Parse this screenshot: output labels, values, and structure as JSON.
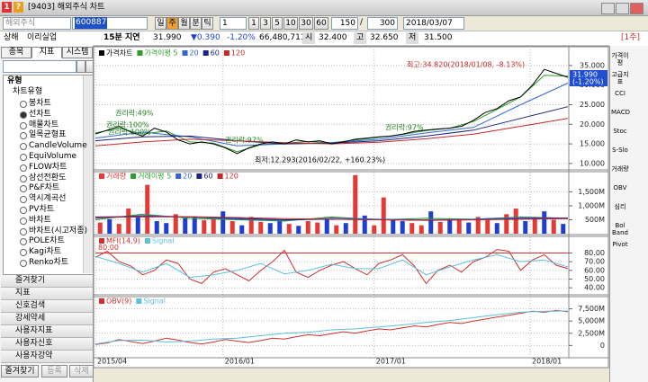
{
  "window": {
    "title": "[9403] 해외주식 차트",
    "icons": [
      "1",
      "?"
    ]
  },
  "toolbar": {
    "market": "해외주식",
    "code": "600887",
    "periods": [
      "일",
      "주",
      "월",
      "분",
      "틱"
    ],
    "interval": "1",
    "minutes": [
      "1",
      "3",
      "5",
      "10",
      "30",
      "60"
    ],
    "count": "150",
    "separator": "/",
    "total": "300",
    "date": "2018/03/07"
  },
  "quote": {
    "exchange": "상해",
    "name": "이리실업",
    "delay": "15분 지연",
    "price": "31.990",
    "change": "▼0.390",
    "rate": "-1.20%",
    "volume": "66,480,711",
    "open_label": "시",
    "open": "32.400",
    "high_label": "고",
    "high": "32.650",
    "low_label": "저",
    "low": "31.500",
    "unit": "[1주]"
  },
  "sidebar": {
    "tabs": [
      "종목",
      "지표",
      "시스템"
    ],
    "tree_root": "유형",
    "group": "차트유형",
    "items": [
      "봉차트",
      "선차트",
      "매물차트",
      "일목균형표",
      "CandleVolume",
      "EquiVolume",
      "FLOW차트",
      "삼선전환도",
      "P&F차트",
      "역시계곡선",
      "PV차트",
      "바차트",
      "바차트(시고저종)",
      "POLE차트",
      "Kagi차트",
      "Renko차트"
    ],
    "selected": 1,
    "sections": [
      "즐겨찾기",
      "지표",
      "신호검색",
      "강세약세",
      "사용자지표",
      "사용자신호",
      "사용자강약"
    ],
    "buttons": [
      "즐겨찾기",
      "등록",
      "삭제"
    ]
  },
  "x_axis": {
    "xlim": [
      0,
      100
    ],
    "xticks": [
      {
        "value": 0,
        "label": "2015/04"
      },
      {
        "value": 27,
        "label": "2016/01"
      },
      {
        "value": 59,
        "label": "2017/01"
      },
      {
        "value": 92,
        "label": "2018/01"
      }
    ]
  },
  "chart_data": [
    {
      "type": "line",
      "title": "가격차트",
      "ylim": [
        8.6,
        39.1
      ],
      "yticks": [
        {
          "value": 35,
          "label": "35.000"
        },
        {
          "value": 30,
          "label": "30.000"
        },
        {
          "value": 25,
          "label": "25.000"
        },
        {
          "value": 20,
          "label": "20.000"
        },
        {
          "value": 15,
          "label": "15.000"
        },
        {
          "value": 10,
          "label": "10.000"
        }
      ],
      "last": {
        "value": 31.99,
        "label": "31.990",
        "change": "(-1.20%)"
      },
      "annotations": [
        "최고:34.820(2018/01/08, -8.13%)",
        "최저:12.293(2016/02/22, +160.23%)",
        "권리락:49%",
        "권리락:100%",
        "권리락:100%",
        "권리락:97%",
        "권리락:97%"
      ],
      "series": [
        {
          "name": "가격이평 5",
          "color": "#2a9d2a",
          "x": [
            0,
            5,
            10,
            15,
            20,
            25,
            30,
            35,
            40,
            45,
            50,
            55,
            60,
            65,
            70,
            75,
            80,
            85,
            90,
            95,
            100
          ],
          "values": [
            17.8,
            19,
            17.5,
            18.3,
            15.5,
            15.2,
            13,
            14.8,
            15.2,
            15.6,
            15.3,
            16,
            16.7,
            17.4,
            18.4,
            19,
            20.7,
            23.8,
            27,
            32.5,
            32.3
          ]
        },
        {
          "name": "20",
          "color": "#3366cc",
          "x": [
            0,
            10,
            20,
            30,
            40,
            50,
            60,
            70,
            80,
            90,
            100
          ],
          "values": [
            16.5,
            18,
            16.8,
            14.5,
            15,
            15.3,
            16.2,
            17.8,
            19.2,
            25,
            30.5
          ]
        },
        {
          "name": "60",
          "color": "#1a237e",
          "x": [
            0,
            10,
            20,
            30,
            40,
            50,
            60,
            70,
            80,
            90,
            100
          ],
          "values": [
            15.8,
            16.8,
            17,
            15.8,
            15,
            15.2,
            15.8,
            17,
            18.5,
            21.5,
            24.5
          ]
        },
        {
          "name": "120",
          "color": "#c62828",
          "x": [
            0,
            10,
            20,
            30,
            40,
            50,
            60,
            70,
            80,
            90,
            100
          ],
          "values": [
            14.5,
            15.5,
            16.2,
            15.8,
            15.3,
            15,
            15.4,
            16.3,
            17.5,
            19.5,
            21.5
          ]
        },
        {
          "name": "가격차트",
          "color": "#000000",
          "x": [
            0,
            2.5,
            5,
            7.5,
            10,
            12.5,
            15,
            17.5,
            20,
            22.5,
            25,
            27.5,
            30,
            32.5,
            35,
            37.5,
            40,
            42.5,
            45,
            47.5,
            50,
            52.5,
            55,
            57.5,
            60,
            62.5,
            65,
            67.5,
            70,
            72.5,
            75,
            77.5,
            80,
            82.5,
            85,
            87.5,
            90,
            92.5,
            95,
            97.5,
            100
          ],
          "values": [
            17.5,
            18.5,
            19.5,
            18,
            17,
            19,
            18,
            16,
            15,
            15.5,
            15,
            14,
            12.5,
            14,
            15,
            15.5,
            15,
            16,
            15.5,
            15.8,
            15,
            15.5,
            16.2,
            16.5,
            16.8,
            17,
            17.5,
            18.2,
            18.5,
            18.8,
            19,
            19.5,
            21,
            23,
            24,
            26,
            27,
            30,
            34,
            33,
            32
          ]
        }
      ]
    },
    {
      "type": "bar",
      "ylim": [
        0,
        2190
      ],
      "yticks": [
        {
          "value": 1500,
          "label": "1,500M"
        },
        {
          "value": 1000,
          "label": "1,000M"
        },
        {
          "value": 500,
          "label": "500M"
        }
      ],
      "series": [
        {
          "name": "거래량",
          "type": "bar",
          "color": "#e53935",
          "x": [
            1,
            3,
            5,
            7,
            9,
            11,
            13,
            15,
            17,
            19,
            21,
            23,
            25,
            27,
            29,
            31,
            33,
            35,
            37,
            39,
            41,
            43,
            45,
            47,
            49,
            51,
            53,
            55,
            57,
            59,
            61,
            63,
            65,
            67,
            69,
            71,
            73,
            75,
            77,
            79,
            81,
            83,
            85,
            87,
            89,
            91,
            93,
            95,
            97,
            99
          ],
          "values": [
            400,
            520,
            350,
            900,
            600,
            1750,
            450,
            380,
            700,
            550,
            620,
            480,
            520,
            800,
            450,
            300,
            600,
            420,
            380,
            500,
            350,
            280,
            450,
            400,
            520,
            300,
            380,
            2100,
            650,
            300,
            1300,
            500,
            450,
            380,
            300,
            800,
            420,
            550,
            480,
            400,
            600,
            520,
            380,
            700,
            900,
            450,
            600,
            800,
            500,
            350
          ],
          "colors": [
            "#e53935",
            "#1e3fd0",
            "#e53935",
            "#e53935",
            "#1e3fd0",
            "#e53935",
            "#1e3fd0",
            "#1e3fd0",
            "#e53935",
            "#1e3fd0",
            "#1e3fd0",
            "#e53935",
            "#e53935",
            "#1e3fd0",
            "#e53935",
            "#1e3fd0",
            "#e53935",
            "#e53935",
            "#1e3fd0",
            "#1e3fd0",
            "#e53935",
            "#1e3fd0",
            "#e53935",
            "#e53935",
            "#1e3fd0",
            "#e53935",
            "#1e3fd0",
            "#e53935",
            "#1e3fd0",
            "#e53935",
            "#e53935",
            "#1e3fd0",
            "#1e3fd0",
            "#e53935",
            "#e53935",
            "#1e3fd0",
            "#e53935",
            "#1e3fd0",
            "#e53935",
            "#1e3fd0",
            "#e53935",
            "#e53935",
            "#1e3fd0",
            "#e53935",
            "#e53935",
            "#1e3fd0",
            "#e53935",
            "#1e3fd0",
            "#e53935",
            "#1e3fd0"
          ]
        },
        {
          "name": "거래이평 5",
          "color": "#2a9d2a",
          "x": [
            0,
            10,
            20,
            30,
            40,
            50,
            60,
            70,
            80,
            90,
            100
          ],
          "values": [
            500,
            700,
            550,
            500,
            450,
            600,
            500,
            550,
            520,
            600,
            550
          ]
        },
        {
          "name": "20",
          "color": "#3366cc",
          "x": [
            0,
            10,
            20,
            30,
            40,
            50,
            60,
            70,
            80,
            90,
            100
          ],
          "values": [
            550,
            650,
            600,
            520,
            480,
            560,
            520,
            500,
            520,
            580,
            560
          ]
        },
        {
          "name": "60",
          "color": "#1a237e",
          "x": [
            0,
            10,
            20,
            30,
            40,
            50,
            60,
            70,
            80,
            90,
            100
          ],
          "values": [
            600,
            620,
            600,
            550,
            500,
            520,
            500,
            480,
            500,
            540,
            560
          ]
        },
        {
          "name": "120",
          "color": "#c62828",
          "x": [
            0,
            10,
            20,
            30,
            40,
            50,
            60,
            70,
            80,
            90,
            100
          ],
          "values": [
            580,
            600,
            610,
            580,
            540,
            520,
            500,
            490,
            495,
            520,
            540
          ]
        }
      ]
    },
    {
      "type": "line",
      "ylim": [
        33,
        98
      ],
      "yticks": [
        {
          "value": 80,
          "label": "80.00"
        },
        {
          "value": 70,
          "label": "70.00"
        },
        {
          "value": 60,
          "label": "60.00"
        },
        {
          "value": 50,
          "label": "50.00"
        },
        {
          "value": 40,
          "label": "40.00"
        }
      ],
      "level": {
        "value": 80,
        "label": "80.00",
        "color": "#d32f2f"
      },
      "series": [
        {
          "name": "MFI(14,9)",
          "color": "#d32f2f",
          "x": [
            0,
            2.5,
            5,
            7.5,
            10,
            12.5,
            15,
            17.5,
            20,
            22.5,
            25,
            27.5,
            30,
            32.5,
            35,
            37.5,
            40,
            42.5,
            45,
            47.5,
            50,
            52.5,
            55,
            57.5,
            60,
            62.5,
            65,
            67.5,
            70,
            72.5,
            75,
            77.5,
            80,
            82.5,
            85,
            87.5,
            90,
            92.5,
            95,
            97.5,
            100
          ],
          "values": [
            75,
            82,
            70,
            65,
            55,
            60,
            72,
            68,
            50,
            45,
            58,
            62,
            55,
            48,
            60,
            70,
            83,
            58,
            52,
            60,
            66,
            70,
            62,
            55,
            68,
            72,
            78,
            65,
            45,
            60,
            66,
            58,
            70,
            75,
            84,
            82,
            60,
            72,
            78,
            66,
            62
          ]
        },
        {
          "name": "Signal",
          "color": "#5bc0de",
          "x": [
            0,
            5,
            10,
            15,
            20,
            25,
            30,
            35,
            40,
            45,
            50,
            55,
            60,
            65,
            70,
            75,
            80,
            85,
            90,
            95,
            100
          ],
          "values": [
            76,
            68,
            58,
            68,
            52,
            55,
            60,
            68,
            56,
            60,
            67,
            62,
            62,
            72,
            55,
            64,
            72,
            78,
            70,
            72,
            64
          ]
        }
      ]
    },
    {
      "type": "line",
      "ylim": [
        -1960,
        9820
      ],
      "yticks": [
        {
          "value": 7500,
          "label": "7,500M"
        },
        {
          "value": 5000,
          "label": "5,000M"
        },
        {
          "value": 2500,
          "label": "2,500M"
        },
        0
      ],
      "series": [
        {
          "name": "OBV(9)",
          "color": "#d32f2f",
          "x": [
            0,
            2.5,
            5,
            7.5,
            10,
            12.5,
            15,
            17.5,
            20,
            22.5,
            25,
            27.5,
            30,
            32.5,
            35,
            37.5,
            40,
            42.5,
            45,
            47.5,
            50,
            52.5,
            55,
            57.5,
            60,
            62.5,
            65,
            67.5,
            70,
            72.5,
            75,
            77.5,
            80,
            82.5,
            85,
            87.5,
            90,
            92.5,
            95,
            97.5,
            100
          ],
          "values": [
            200,
            500,
            1200,
            800,
            400,
            900,
            1500,
            1100,
            600,
            300,
            700,
            1200,
            900,
            600,
            1000,
            1500,
            1300,
            1800,
            2200,
            2000,
            2400,
            2800,
            2500,
            3000,
            3400,
            3200,
            3600,
            4000,
            3800,
            4300,
            4700,
            4500,
            5000,
            5400,
            5800,
            6200,
            6600,
            7000,
            6800,
            7200,
            6900
          ]
        },
        {
          "name": "Signal",
          "color": "#5bc0de",
          "x": [
            0,
            5,
            10,
            15,
            20,
            25,
            30,
            35,
            40,
            45,
            50,
            55,
            60,
            65,
            70,
            75,
            80,
            85,
            90,
            95,
            100
          ],
          "values": [
            300,
            1000,
            1100,
            700,
            900,
            1300,
            1500,
            2000,
            2500,
            2700,
            3200,
            3400,
            3800,
            4200,
            4700,
            5100,
            5700,
            6300,
            6800,
            7000,
            7050
          ]
        }
      ]
    }
  ],
  "right_toolbar": [
    "가격이평",
    "고급지표",
    "CCI",
    "MACD",
    "Stoc",
    "S-Slo",
    "거래량",
    "OBV",
    "심리",
    "Bol Band",
    "Pivot"
  ]
}
